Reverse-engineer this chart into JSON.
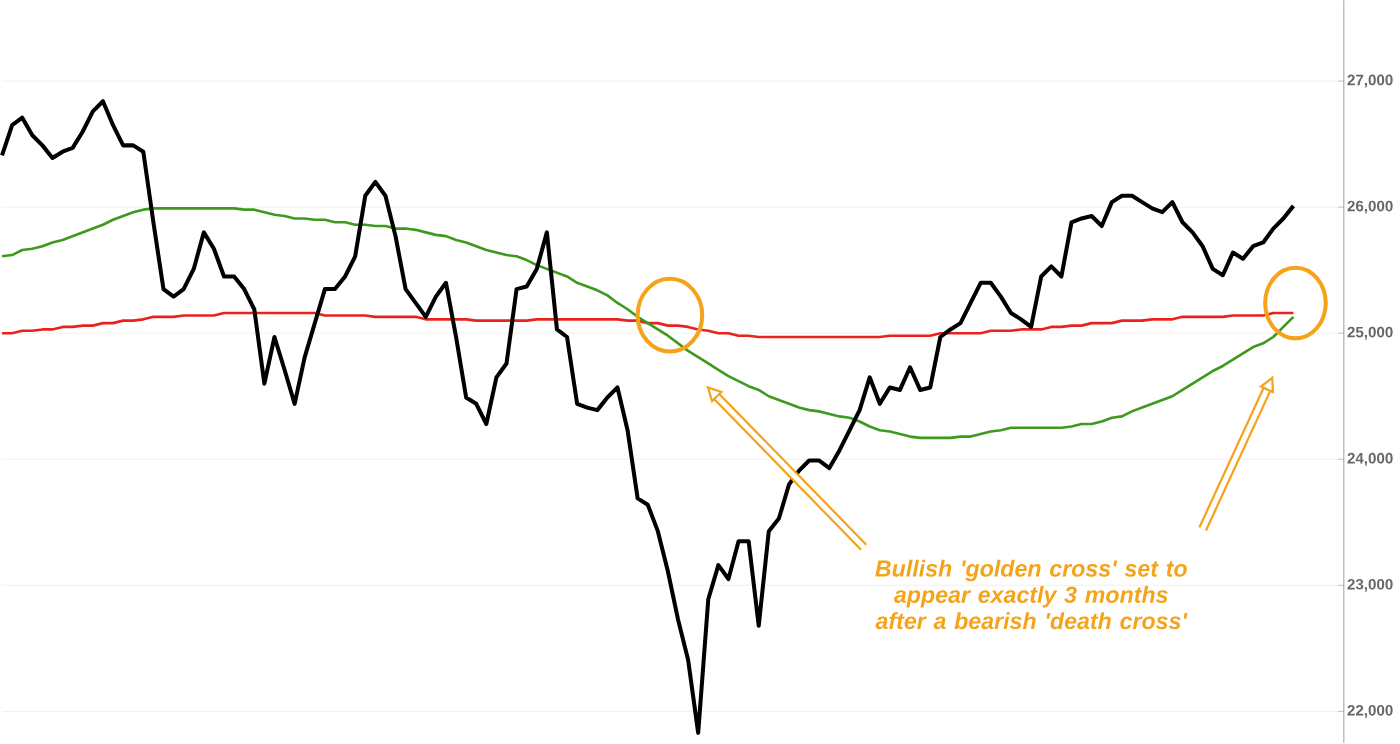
{
  "chart_data": {
    "type": "line",
    "categories": [
      null,
      null,
      null,
      null,
      null,
      null,
      null,
      null,
      null,
      null,
      null,
      null,
      null,
      null,
      null,
      null,
      null,
      null,
      null,
      null,
      null,
      null,
      null,
      null,
      null,
      null,
      null,
      null,
      null,
      null,
      null,
      null,
      null,
      null,
      null,
      null,
      null,
      null,
      null,
      null,
      null,
      null,
      null,
      null,
      null,
      null,
      null,
      null,
      null,
      null,
      null,
      null,
      null,
      null,
      null,
      null,
      null,
      null,
      null,
      null,
      null,
      null,
      null,
      null,
      null,
      null,
      null,
      null,
      null,
      null,
      null,
      null,
      null,
      null,
      null,
      null,
      null,
      null,
      null,
      null,
      null,
      null,
      null,
      null,
      null,
      null,
      null,
      null,
      null,
      null,
      null,
      null,
      null,
      null,
      null,
      null,
      null,
      null,
      null,
      null,
      null,
      null,
      null,
      null,
      null,
      null,
      null,
      null,
      null,
      null,
      null,
      null,
      null,
      null,
      null,
      null,
      null,
      null,
      null,
      null,
      null,
      null,
      null,
      null,
      null,
      null,
      null,
      null,
      null
    ],
    "series": [
      {
        "color": "#000000",
        "values": [
          26410,
          26650,
          26710,
          26570,
          26490,
          26390,
          26440,
          26470,
          26600,
          26760,
          26840,
          26650,
          26490,
          26490,
          26440,
          25880,
          25350,
          25290,
          25350,
          25510,
          25800,
          25670,
          25450,
          25450,
          25350,
          25190,
          24600,
          24970,
          24710,
          24440,
          24810,
          25080,
          25350,
          25350,
          25450,
          25610,
          26090,
          26200,
          26090,
          25770,
          25350,
          25240,
          25130,
          25290,
          25400,
          24970,
          24490,
          24440,
          24280,
          24650,
          24760,
          25350,
          25370,
          25510,
          25800,
          25030,
          24970,
          24440,
          24410,
          24390,
          24490,
          24570,
          24230,
          23690,
          23640,
          23430,
          23110,
          22730,
          22410,
          21830,
          22890,
          23160,
          23050,
          23350,
          23350,
          22680,
          23430,
          23530,
          23800,
          23910,
          23990,
          23990,
          23930,
          24070,
          24230,
          24390,
          24650,
          24440,
          24570,
          24550,
          24730,
          24550,
          24570,
          24970,
          25030,
          25080,
          25240,
          25400,
          25400,
          25290,
          25160,
          25110,
          25050,
          25450,
          25530,
          25450,
          25880,
          25910,
          25930,
          25850,
          26040,
          26090,
          26090,
          26040,
          25990,
          25960,
          26040,
          25880,
          25800,
          25690,
          25510,
          25460,
          25640,
          25590,
          25690,
          25720,
          25830,
          25910,
          26010
        ]
      },
      {
        "color": "#3c9a1c",
        "values": [
          25610,
          25620,
          25660,
          25670,
          25690,
          25720,
          25740,
          25770,
          25800,
          25830,
          25860,
          25900,
          25930,
          25960,
          25980,
          25990,
          25990,
          25990,
          25990,
          25990,
          25990,
          25990,
          25990,
          25990,
          25980,
          25980,
          25960,
          25940,
          25930,
          25910,
          25910,
          25900,
          25900,
          25880,
          25880,
          25860,
          25860,
          25850,
          25850,
          25830,
          25830,
          25820,
          25800,
          25780,
          25770,
          25740,
          25720,
          25690,
          25660,
          25640,
          25620,
          25610,
          25580,
          25540,
          25510,
          25480,
          25450,
          25400,
          25370,
          25340,
          25300,
          25240,
          25190,
          25130,
          25080,
          25030,
          24980,
          24920,
          24860,
          24810,
          24760,
          24710,
          24660,
          24620,
          24580,
          24550,
          24500,
          24470,
          24440,
          24410,
          24390,
          24380,
          24360,
          24340,
          24330,
          24300,
          24260,
          24230,
          24220,
          24200,
          24180,
          24170,
          24170,
          24170,
          24170,
          24180,
          24180,
          24200,
          24220,
          24230,
          24250,
          24250,
          24250,
          24250,
          24250,
          24250,
          24260,
          24280,
          24280,
          24300,
          24330,
          24340,
          24380,
          24410,
          24440,
          24470,
          24500,
          24550,
          24600,
          24650,
          24700,
          24740,
          24790,
          24840,
          24890,
          24920,
          24970,
          25050,
          25130
        ]
      },
      {
        "color": "#e8231e",
        "values": [
          25000,
          25000,
          25020,
          25020,
          25030,
          25030,
          25050,
          25050,
          25060,
          25060,
          25080,
          25080,
          25100,
          25100,
          25110,
          25130,
          25130,
          25130,
          25140,
          25140,
          25140,
          25140,
          25160,
          25160,
          25160,
          25160,
          25160,
          25160,
          25160,
          25160,
          25160,
          25160,
          25140,
          25140,
          25140,
          25140,
          25140,
          25130,
          25130,
          25130,
          25130,
          25130,
          25110,
          25110,
          25110,
          25110,
          25110,
          25100,
          25100,
          25100,
          25100,
          25100,
          25100,
          25110,
          25110,
          25110,
          25110,
          25110,
          25110,
          25110,
          25110,
          25110,
          25100,
          25100,
          25080,
          25080,
          25060,
          25060,
          25050,
          25030,
          25020,
          25000,
          25000,
          24980,
          24980,
          24970,
          24970,
          24970,
          24970,
          24970,
          24970,
          24970,
          24970,
          24970,
          24970,
          24970,
          24970,
          24970,
          24980,
          24980,
          24980,
          24980,
          24980,
          25000,
          25000,
          25000,
          25000,
          25000,
          25020,
          25020,
          25020,
          25030,
          25030,
          25030,
          25050,
          25050,
          25060,
          25060,
          25080,
          25080,
          25080,
          25100,
          25100,
          25100,
          25110,
          25110,
          25110,
          25130,
          25130,
          25130,
          25130,
          25130,
          25140,
          25140,
          25140,
          25140,
          25160,
          25160,
          25160
        ]
      }
    ],
    "ylim": [
      21750,
      27640
    ],
    "yticks": [
      {
        "value": 22000,
        "label": "22,000"
      },
      {
        "value": 23000,
        "label": "23,000"
      },
      {
        "value": 24000,
        "label": "24,000"
      },
      {
        "value": 25000,
        "label": "25,000"
      },
      {
        "value": 26000,
        "label": "26,000"
      },
      {
        "value": 27000,
        "label": "27,000"
      }
    ],
    "grid": "y",
    "marker": "none",
    "line_style": "solid",
    "tick_labels": "y",
    "annotations": [
      "Bullish 'golden cross' set to appear exactly 3 months after a bearish 'death cross'"
    ]
  }
}
